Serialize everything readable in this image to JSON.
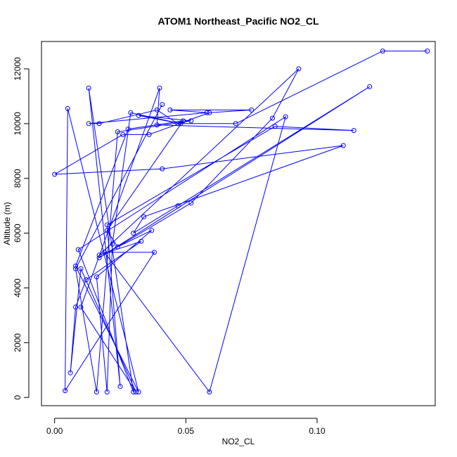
{
  "chart_data": {
    "type": "line",
    "title": "ATOM1 Northeast_Pacific NO2_CL",
    "xlabel": "NO2_CL",
    "ylabel": "Altitude (m)",
    "xlim": [
      -0.005,
      0.145
    ],
    "ylim": [
      -300,
      13000
    ],
    "xticks": [
      0.0,
      0.05,
      0.1
    ],
    "xtick_labels": [
      "0.00",
      "0.05",
      "0.10"
    ],
    "yticks": [
      0,
      2000,
      4000,
      6000,
      8000,
      10000,
      12000
    ],
    "ytick_labels": [
      "0",
      "2000",
      "4000",
      "6000",
      "8000",
      "10000",
      "12000"
    ],
    "grid": false,
    "series_color": "#0000ff",
    "series": [
      {
        "name": "",
        "points": [
          [
            0.142,
            12650
          ],
          [
            0.125,
            12650
          ],
          [
            0.069,
            10000
          ],
          [
            0.047,
            10000
          ],
          [
            0.039,
            10500
          ],
          [
            0.017,
            10000
          ],
          [
            0.013,
            10000
          ],
          [
            0.058,
            10400
          ],
          [
            0.044,
            10500
          ],
          [
            0.075,
            10500
          ],
          [
            0.059,
            10400
          ],
          [
            0.036,
            9600
          ],
          [
            0.026,
            9600
          ],
          [
            0.0,
            8150
          ],
          [
            0.041,
            8350
          ],
          [
            0.11,
            9200
          ],
          [
            0.034,
            6600
          ],
          [
            0.03,
            6000
          ],
          [
            0.047,
            7000
          ],
          [
            0.12,
            11350
          ],
          [
            0.017,
            5100
          ],
          [
            0.052,
            7100
          ],
          [
            0.083,
            10200
          ],
          [
            0.093,
            12000
          ],
          [
            0.017,
            5200
          ],
          [
            0.033,
            5700
          ],
          [
            0.012,
            4300
          ],
          [
            0.008,
            3300
          ],
          [
            0.006,
            900
          ],
          [
            0.01,
            4700
          ],
          [
            0.031,
            200
          ],
          [
            0.01,
            3300
          ],
          [
            0.04,
            11300
          ],
          [
            0.039,
            9950
          ],
          [
            0.114,
            9750
          ],
          [
            0.084,
            9900
          ],
          [
            0.02,
            6300
          ],
          [
            0.025,
            400
          ],
          [
            0.013,
            11300
          ],
          [
            0.03,
            200
          ],
          [
            0.009,
            5400
          ],
          [
            0.088,
            10250
          ],
          [
            0.059,
            200
          ],
          [
            0.019,
            5300
          ],
          [
            0.038,
            5300
          ],
          [
            0.004,
            250
          ],
          [
            0.005,
            10550
          ],
          [
            0.032,
            200
          ],
          [
            0.008,
            4800
          ],
          [
            0.028,
            9800
          ],
          [
            0.049,
            10100
          ],
          [
            0.02,
            6100
          ],
          [
            0.024,
            5500
          ],
          [
            0.037,
            6100
          ],
          [
            0.016,
            4400
          ],
          [
            0.02,
            200
          ],
          [
            0.022,
            5600
          ],
          [
            0.029,
            10400
          ],
          [
            0.048,
            10000
          ],
          [
            0.032,
            10300
          ],
          [
            0.052,
            10100
          ],
          [
            0.024,
            9700
          ],
          [
            0.016,
            200
          ],
          [
            0.008,
            4700
          ],
          [
            0.041,
            10700
          ]
        ]
      }
    ]
  }
}
